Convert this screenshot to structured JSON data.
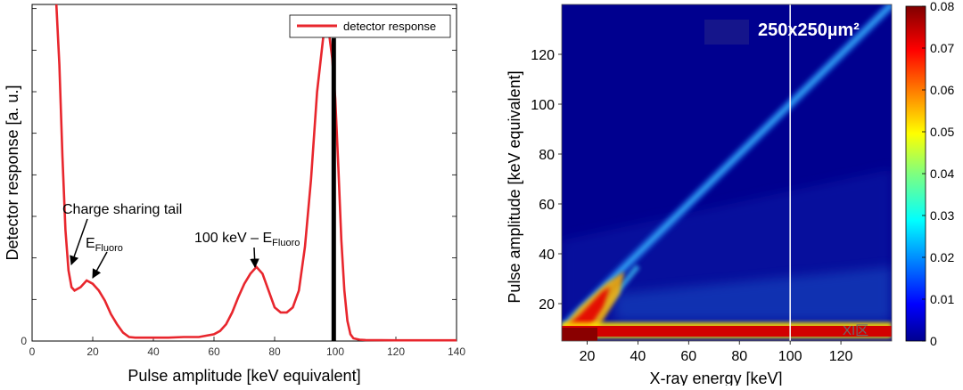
{
  "chart_data": [
    {
      "type": "line",
      "title": "",
      "xlabel": "Pulse amplitude [keV equivalent]",
      "ylabel": "Detector response [a. u.]",
      "xlim": [
        0,
        140
      ],
      "ylim": [
        0,
        1
      ],
      "xticks": [
        0,
        20,
        40,
        60,
        80,
        100,
        120,
        140
      ],
      "grid": false,
      "legend": "top-right",
      "series": [
        {
          "name": "detector response",
          "color": "#e8262d",
          "x": [
            8,
            9,
            10,
            11,
            12,
            13,
            14,
            16,
            18,
            20,
            22,
            24,
            26,
            28,
            30,
            32,
            34,
            36,
            40,
            45,
            50,
            55,
            60,
            62,
            64,
            66,
            68,
            70,
            72,
            74,
            76,
            78,
            80,
            82,
            84,
            86,
            88,
            90,
            92,
            94,
            96,
            97,
            98,
            99,
            100,
            101,
            102,
            103,
            104,
            105,
            106,
            108,
            110,
            120,
            130,
            140
          ],
          "y": [
            1.0,
            0.82,
            0.55,
            0.33,
            0.21,
            0.16,
            0.15,
            0.16,
            0.18,
            0.17,
            0.15,
            0.12,
            0.08,
            0.05,
            0.025,
            0.012,
            0.01,
            0.01,
            0.01,
            0.01,
            0.012,
            0.012,
            0.02,
            0.03,
            0.05,
            0.085,
            0.13,
            0.17,
            0.2,
            0.22,
            0.2,
            0.15,
            0.1,
            0.085,
            0.085,
            0.1,
            0.15,
            0.28,
            0.48,
            0.74,
            0.9,
            0.93,
            0.91,
            0.84,
            0.72,
            0.52,
            0.3,
            0.15,
            0.06,
            0.02,
            0.008,
            0.004,
            0.003,
            0.002,
            0.002,
            0.002
          ]
        }
      ],
      "vertical_line": {
        "x": 99.5,
        "color": "#000000"
      },
      "annotations": [
        {
          "label": "Charge sharing tail",
          "x": 13,
          "y": 0.25
        },
        {
          "label_main": "E",
          "label_sub": "Fluoro",
          "x": 20,
          "y": 0.18
        },
        {
          "label_main": "100 keV – E",
          "label_sub": "Fluoro",
          "x": 74,
          "y": 0.24
        }
      ]
    },
    {
      "type": "heatmap",
      "title": "",
      "xlabel": "X-ray energy [keV]",
      "ylabel": "Pulse amplitude [keV equivalent]",
      "xlim": [
        10,
        140
      ],
      "ylim": [
        5,
        140
      ],
      "xticks": [
        20,
        40,
        60,
        80,
        100,
        120
      ],
      "yticks": [
        20,
        40,
        60,
        80,
        100,
        120
      ],
      "vertical_line": {
        "x": 100,
        "color": "#ffffff"
      },
      "inset_label": "250x250µm²",
      "colorbar": {
        "min": 0,
        "max": 0.08,
        "ticks": [
          "0",
          "0.01",
          "0.02",
          "0.03",
          "0.04",
          "0.05",
          "0.06",
          "0.07",
          "0.08"
        ],
        "colormap": "jet"
      },
      "features": [
        {
          "name": "photopeak diagonal",
          "from": [
            10,
            10
          ],
          "to": [
            140,
            140
          ]
        },
        {
          "name": "escape diagonal",
          "from": [
            20,
            10
          ],
          "to": [
            40,
            35
          ]
        },
        {
          "name": "charge sharing band",
          "y_range": [
            7,
            10
          ]
        }
      ]
    }
  ],
  "watermark": "XI区"
}
